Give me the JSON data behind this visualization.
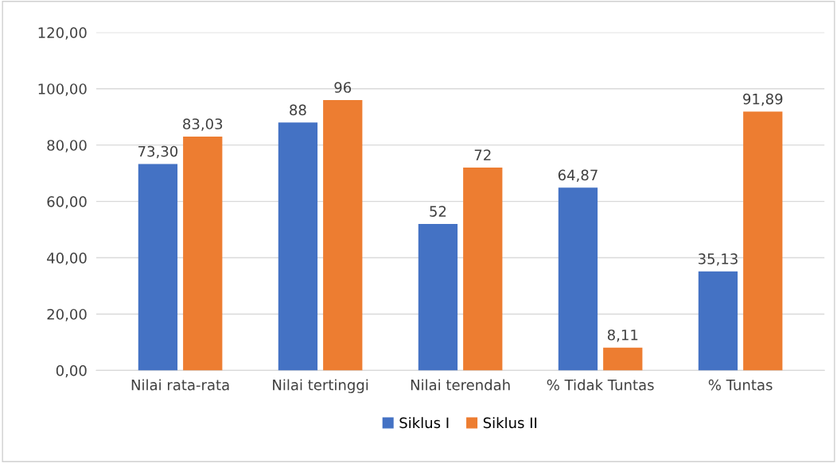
{
  "chart_data": {
    "type": "bar",
    "categories": [
      "Nilai rata-rata",
      "Nilai tertinggi",
      "Nilai terendah",
      "% Tidak Tuntas",
      "% Tuntas"
    ],
    "series": [
      {
        "name": "Siklus I",
        "color": "#4472c4",
        "values": [
          73.3,
          88,
          52,
          64.87,
          35.13
        ],
        "value_labels": [
          "73,30",
          "88",
          "52",
          "64,87",
          "35,13"
        ]
      },
      {
        "name": "Siklus II",
        "color": "#ed7d31",
        "values": [
          83.03,
          96,
          72,
          8.11,
          91.89
        ],
        "value_labels": [
          "83,03",
          "96",
          "72",
          "8,11",
          "91,89"
        ]
      }
    ],
    "ylim": [
      0,
      120
    ],
    "yticks": [
      {
        "value": 0,
        "label": "0,00"
      },
      {
        "value": 20,
        "label": "20,00"
      },
      {
        "value": 40,
        "label": "40,00"
      },
      {
        "value": 60,
        "label": "60,00"
      },
      {
        "value": 80,
        "label": "80,00"
      },
      {
        "value": 100,
        "label": "100,00"
      },
      {
        "value": 120,
        "label": "120,00"
      }
    ],
    "grid": "y",
    "legend": "bottom"
  }
}
